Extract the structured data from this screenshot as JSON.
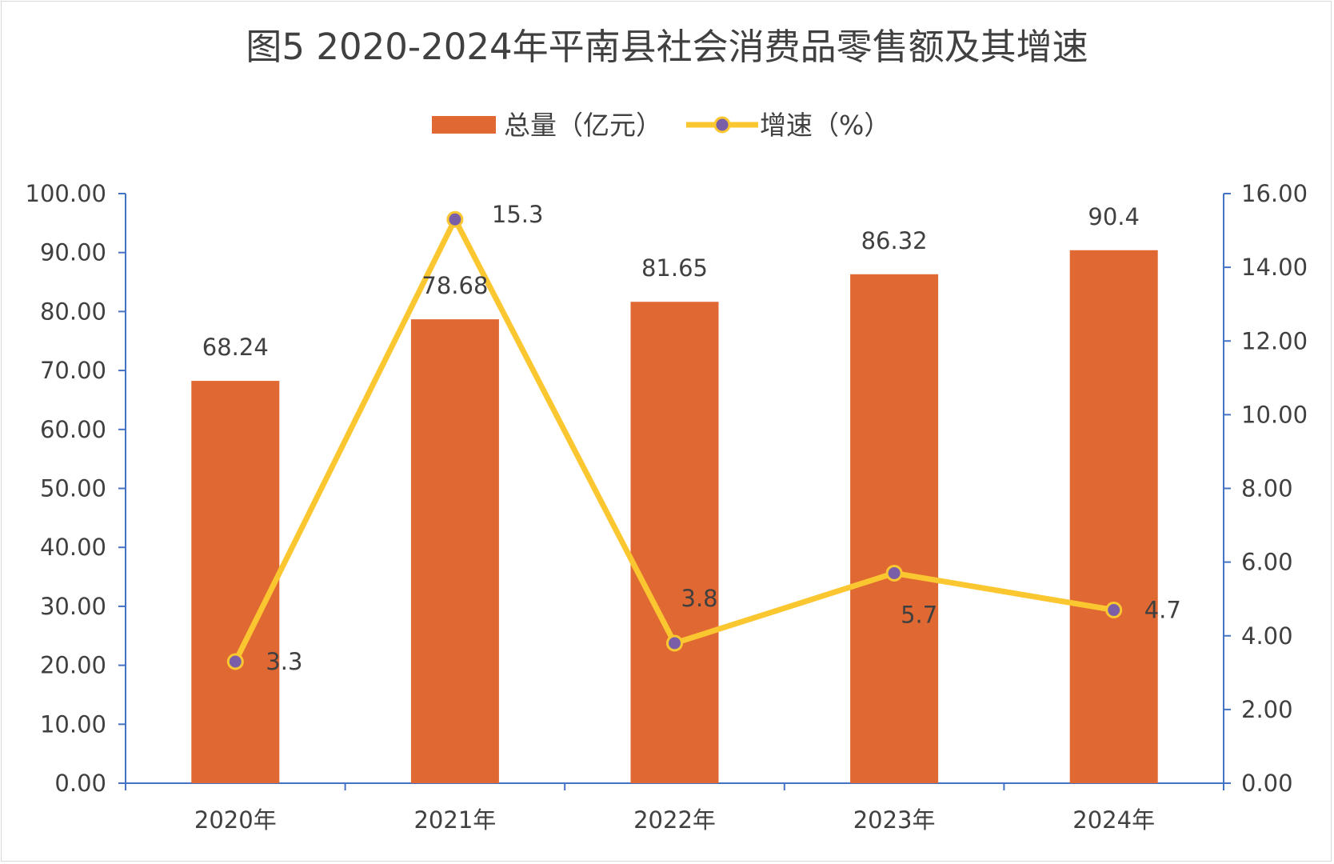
{
  "chart_data": {
    "type": "bar",
    "title": "图5  2020-2024年平南县社会消费品零售额及其增速",
    "categories": [
      "2020年",
      "2021年",
      "2022年",
      "2023年",
      "2024年"
    ],
    "series": [
      {
        "name": "总量（亿元）",
        "type": "bar",
        "axis": "left",
        "color": "#e06832",
        "values": [
          68.24,
          78.68,
          81.65,
          86.32,
          90.4
        ],
        "labels": [
          "68.24",
          "78.68",
          "81.65",
          "86.32",
          "90.4"
        ]
      },
      {
        "name": "增速（%）",
        "type": "line",
        "axis": "right",
        "color": "#fbc731",
        "marker_color": "#7a5fa8",
        "values": [
          3.3,
          15.3,
          3.8,
          5.7,
          4.7
        ],
        "labels": [
          "3.3",
          "15.3",
          "3.8",
          "5.7",
          "4.7"
        ]
      }
    ],
    "y_left": {
      "min": 0,
      "max": 100,
      "ticks": [
        "0.00",
        "10.00",
        "20.00",
        "30.00",
        "40.00",
        "50.00",
        "60.00",
        "70.00",
        "80.00",
        "90.00",
        "100.00"
      ]
    },
    "y_right": {
      "min": 0,
      "max": 16,
      "ticks": [
        "0.00",
        "2.00",
        "4.00",
        "6.00",
        "8.00",
        "10.00",
        "12.00",
        "14.00",
        "16.00"
      ]
    },
    "axis_color": "#4472c4",
    "grid": false,
    "legend_position": "top"
  }
}
